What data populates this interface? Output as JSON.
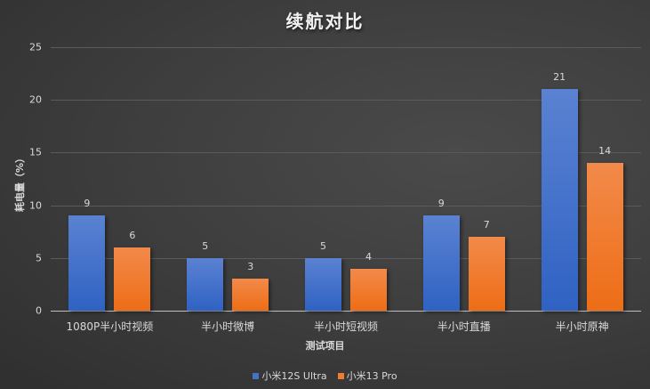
{
  "chart_data": {
    "type": "bar",
    "title": "续航对比",
    "xlabel": "测试项目",
    "ylabel": "耗电量（%）",
    "ylim": [
      0,
      25
    ],
    "yticks": [
      0,
      5,
      10,
      15,
      20,
      25
    ],
    "grid": true,
    "legend_position": "bottom",
    "categories": [
      "1080P半小时视频",
      "半小时微博",
      "半小时短视频",
      "半小时直播",
      "半小时原神"
    ],
    "series": [
      {
        "name": "小米12S Ultra",
        "color": "#4472c4",
        "values": [
          9,
          5,
          5,
          9,
          21
        ]
      },
      {
        "name": "小米13 Pro",
        "color": "#ed7d31",
        "values": [
          6,
          3,
          4,
          7,
          14
        ]
      }
    ]
  },
  "ytick_labels": [
    "0",
    "5",
    "10",
    "15",
    "20",
    "25"
  ]
}
